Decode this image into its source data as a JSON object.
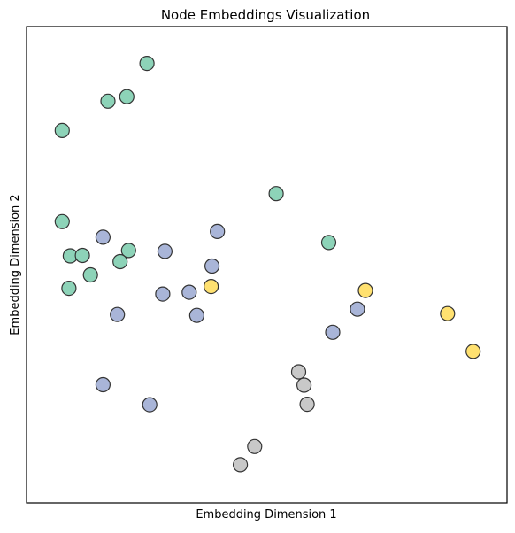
{
  "chart_data": {
    "type": "scatter",
    "title": "Node Embeddings Visualization",
    "xlabel": "Embedding Dimension 1",
    "ylabel": "Embedding Dimension 2",
    "xlim": [
      0,
      100
    ],
    "ylim": [
      0,
      100
    ],
    "grid": false,
    "legend": "none",
    "ticks_visible": false,
    "marker": "circle",
    "edge_color": "#333333",
    "points": [
      {
        "x": 23.3,
        "y": 95.3,
        "color": "#8dd3b8"
      },
      {
        "x": 14.6,
        "y": 86.8,
        "color": "#8dd3b8"
      },
      {
        "x": 18.8,
        "y": 87.8,
        "color": "#8dd3b8"
      },
      {
        "x": 4.4,
        "y": 80.2,
        "color": "#8dd3b8"
      },
      {
        "x": 52.1,
        "y": 66.0,
        "color": "#8dd3b8"
      },
      {
        "x": 4.4,
        "y": 59.7,
        "color": "#8dd3b8"
      },
      {
        "x": 63.8,
        "y": 55.0,
        "color": "#8dd3b8"
      },
      {
        "x": 19.2,
        "y": 53.2,
        "color": "#8dd3b8"
      },
      {
        "x": 6.2,
        "y": 52.0,
        "color": "#8dd3b8"
      },
      {
        "x": 8.9,
        "y": 52.1,
        "color": "#8dd3b8"
      },
      {
        "x": 17.3,
        "y": 50.7,
        "color": "#8dd3b8"
      },
      {
        "x": 10.7,
        "y": 47.7,
        "color": "#8dd3b8"
      },
      {
        "x": 5.9,
        "y": 44.7,
        "color": "#8dd3b8"
      },
      {
        "x": 39.0,
        "y": 57.5,
        "color": "#a9b5d8"
      },
      {
        "x": 13.5,
        "y": 56.2,
        "color": "#a9b5d8"
      },
      {
        "x": 27.3,
        "y": 53.0,
        "color": "#a9b5d8"
      },
      {
        "x": 37.8,
        "y": 49.7,
        "color": "#a9b5d8"
      },
      {
        "x": 32.7,
        "y": 43.8,
        "color": "#a9b5d8"
      },
      {
        "x": 26.8,
        "y": 43.4,
        "color": "#a9b5d8"
      },
      {
        "x": 70.2,
        "y": 40.0,
        "color": "#a9b5d8"
      },
      {
        "x": 16.7,
        "y": 38.8,
        "color": "#a9b5d8"
      },
      {
        "x": 34.4,
        "y": 38.6,
        "color": "#a9b5d8"
      },
      {
        "x": 64.7,
        "y": 34.8,
        "color": "#a9b5d8"
      },
      {
        "x": 13.5,
        "y": 23.0,
        "color": "#a9b5d8"
      },
      {
        "x": 23.9,
        "y": 18.5,
        "color": "#a9b5d8"
      },
      {
        "x": 37.6,
        "y": 45.1,
        "color": "#ffe170"
      },
      {
        "x": 72.0,
        "y": 44.2,
        "color": "#ffe170"
      },
      {
        "x": 90.3,
        "y": 39.0,
        "color": "#ffe170"
      },
      {
        "x": 96.0,
        "y": 30.5,
        "color": "#ffe170"
      },
      {
        "x": 57.1,
        "y": 25.9,
        "color": "#c8c8c8"
      },
      {
        "x": 58.3,
        "y": 22.9,
        "color": "#c8c8c8"
      },
      {
        "x": 59.0,
        "y": 18.6,
        "color": "#c8c8c8"
      },
      {
        "x": 47.3,
        "y": 9.1,
        "color": "#c8c8c8"
      },
      {
        "x": 44.1,
        "y": 5.0,
        "color": "#c8c8c8"
      }
    ]
  }
}
